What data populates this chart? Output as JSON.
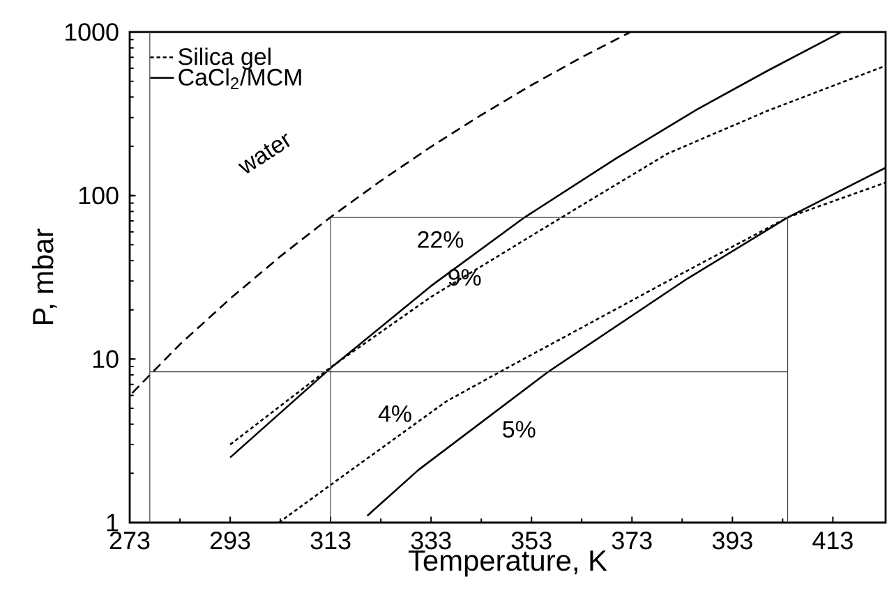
{
  "chart_data": {
    "type": "line",
    "xlabel": "Temperature, K",
    "ylabel": "P, mbar",
    "log": "y",
    "xlim": [
      273,
      423.5
    ],
    "ylim": [
      1,
      1000
    ],
    "xticks": [
      273,
      293,
      313,
      333,
      353,
      373,
      393,
      413
    ],
    "yticks": [
      1,
      10,
      100,
      1000
    ],
    "grid": false,
    "legend": "top left",
    "marker": "none",
    "series": [
      {
        "name": "Silica gel",
        "color": "#000000",
        "line_style": "dotted",
        "x": [
          293,
          313,
          333,
          359,
          380,
          400,
          423.5
        ],
        "values": [
          3.0,
          8.9,
          24,
          73.5,
          180,
          330,
          622
        ]
      },
      {
        "name": "CaCl$_{2}$/MCM",
        "color": "#000000",
        "line_style": "solid",
        "x": [
          293,
          313,
          333,
          351.6,
          370,
          386,
          400,
          414.7
        ],
        "values": [
          2.5,
          8.8,
          28,
          73.5,
          170,
          337,
          580,
          1000
        ]
      },
      {
        "color": "#000000",
        "line_style": "dotted",
        "x": [
          302.7,
          313,
          336,
          346.7,
          381,
          404,
          423.5
        ],
        "values": [
          1.0,
          1.7,
          5.5,
          8.35,
          31,
          73.5,
          120
        ]
      },
      {
        "color": "#000000",
        "line_style": "solid",
        "x": [
          320.3,
          330.5,
          356.3,
          384,
          404,
          423.5
        ],
        "values": [
          1.1,
          2.1,
          8.35,
          31,
          73.5,
          148
        ]
      },
      {
        "color": "#000000",
        "line_style": "dashed",
        "x": [
          273.5,
          283,
          293,
          303,
          313,
          323,
          333,
          343,
          353,
          363,
          372.7
        ],
        "values": [
          6.2,
          12.3,
          23.4,
          42.5,
          73.8,
          123,
          199,
          311,
          474,
          701,
          1000
        ]
      },
      {
        "color": "#404040",
        "line_style": "solid",
        "x": [
          313,
          313,
          404,
          404
        ],
        "values": [
          1,
          73.5,
          73.5,
          1
        ]
      },
      {
        "color": "#404040",
        "line_style": "solid",
        "x": [
          277,
          404
        ],
        "values": [
          8.35,
          8.35
        ]
      }
    ],
    "ref_lines": [
      {
        "axis": "x",
        "value": 277,
        "color": "#404040",
        "line_style": "solid"
      }
    ],
    "annotations": [
      "water",
      "22%",
      "9%",
      "4%",
      "5%"
    ]
  }
}
